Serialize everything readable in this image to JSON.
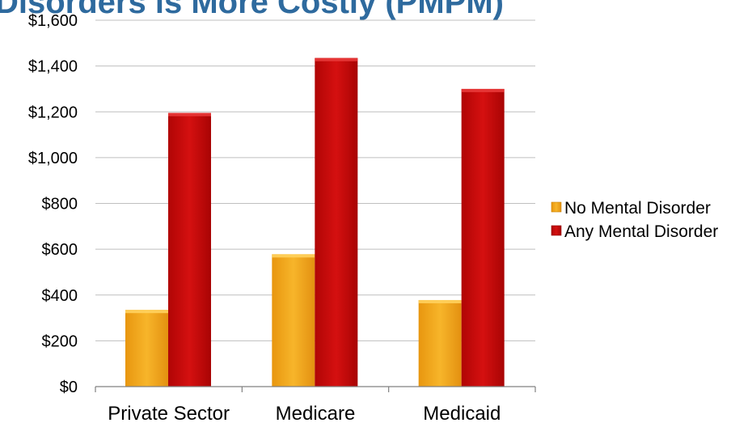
{
  "colors": {
    "title": "#2E6A9E",
    "gridline": "#BFBFBF",
    "axis": "#808080",
    "no_mental_disorder": "#F2A81E",
    "any_mental_disorder": "#CC0A0A"
  },
  "chart_data": {
    "type": "bar",
    "title": "Disorders is More Costly (PMPM)",
    "xlabel": "",
    "ylabel": "",
    "categories": [
      "Private Sector",
      "Medicare",
      "Medicaid"
    ],
    "series": [
      {
        "name": "No Mental Disorder",
        "values": [
          335,
          578,
          378
        ]
      },
      {
        "name": "Any Mental Disorder",
        "values": [
          1195,
          1435,
          1300
        ]
      }
    ],
    "ylim": [
      0,
      1600
    ],
    "yticks": [
      0,
      200,
      400,
      600,
      800,
      1000,
      1200,
      1400,
      1600
    ],
    "ytick_labels": [
      "$0",
      "$200",
      "$400",
      "$600",
      "$800",
      "$1,000",
      "$1,200",
      "$1,400",
      "$1,600"
    ],
    "grid": true,
    "legend_position": "right"
  }
}
